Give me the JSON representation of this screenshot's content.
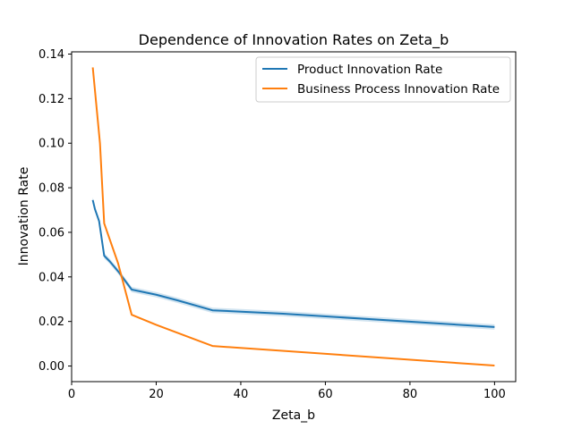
{
  "chart_data": {
    "type": "line",
    "title": "Dependence of Innovation Rates on Zeta_b",
    "xlabel": "Zeta_b",
    "ylabel": "Innovation Rate",
    "xlim": [
      0,
      105
    ],
    "ylim": [
      -0.007,
      0.141
    ],
    "xticks": [
      0,
      20,
      40,
      60,
      80,
      100
    ],
    "yticks": [
      0.0,
      0.02,
      0.04,
      0.06,
      0.08,
      0.1,
      0.12,
      0.14
    ],
    "xtick_labels": [
      "0",
      "20",
      "40",
      "60",
      "80",
      "100"
    ],
    "ytick_labels": [
      "0.00",
      "0.02",
      "0.04",
      "0.06",
      "0.08",
      "0.10",
      "0.12",
      "0.14"
    ],
    "grid": false,
    "legend_position": "top-right",
    "series": [
      {
        "name": "Product Innovation Rate",
        "color": "#1f77b4",
        "x": [
          5,
          5.5,
          6.5,
          7.7,
          9,
          11,
          14.2,
          20,
          25,
          33.3,
          50,
          100
        ],
        "y": [
          0.0745,
          0.0705,
          0.065,
          0.0495,
          0.047,
          0.0425,
          0.0343,
          0.032,
          0.0295,
          0.025,
          0.0235,
          0.0175
        ],
        "band": 0.0012
      },
      {
        "name": "Business Process Innovation Rate",
        "color": "#ff7f0e",
        "x": [
          5,
          6.7,
          7.7,
          11,
          14.2,
          20,
          33.3,
          100
        ],
        "y": [
          0.134,
          0.1,
          0.064,
          0.046,
          0.023,
          0.0185,
          0.009,
          0.0002
        ]
      }
    ]
  }
}
